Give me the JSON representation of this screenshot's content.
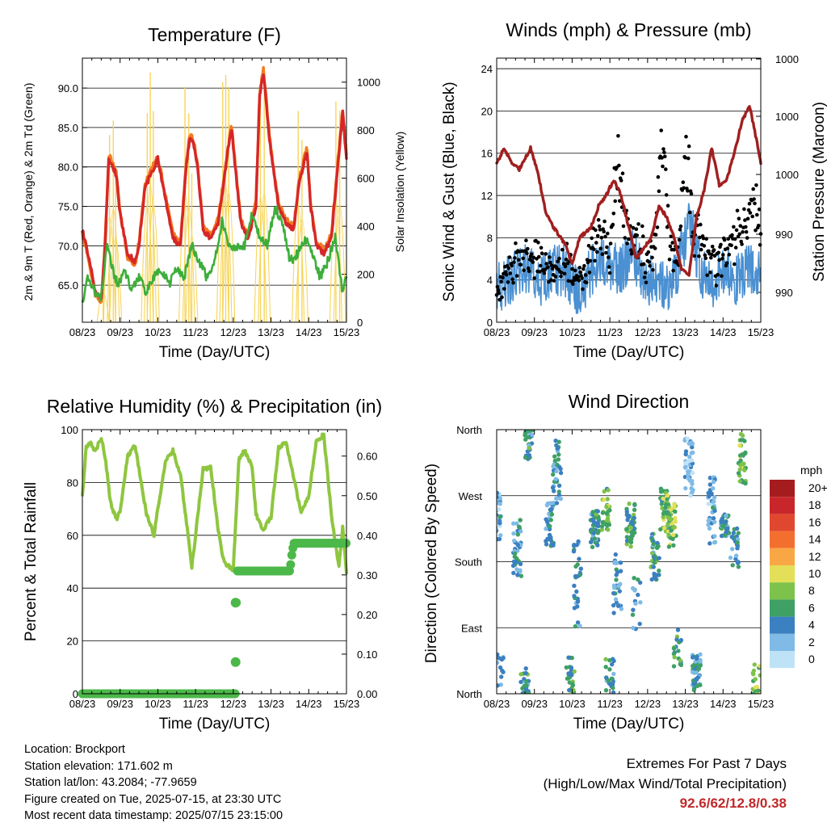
{
  "colors": {
    "temp_2m": "#d62728",
    "temp_9m": "#f47a20",
    "dewpoint": "#3dae3a",
    "solar": "#f7d55a",
    "wind_sustained": "#4a90d2",
    "gust": "#000000",
    "pressure": "#a01f1f",
    "rh": "#8ec63f",
    "precip": "#4cb84a",
    "extremes": "#c0282a"
  },
  "chart_data": [
    {
      "id": "temperature",
      "type": "line",
      "title": "Temperature (F)",
      "xlabel": "Time (Day/UTC)",
      "ylabel": "2m & 9m T (Red, Orange) & 2m Td (Green)",
      "y2label": "Solar Insolation (Yellow)",
      "x_ticks": [
        "08/23",
        "09/23",
        "10/23",
        "11/23",
        "12/23",
        "13/23",
        "14/23",
        "15/23"
      ],
      "ylim": [
        60.3,
        93.8
      ],
      "y_ticks": [
        "65.0",
        "70.0",
        "75.0",
        "80.0",
        "85.0",
        "90.0"
      ],
      "y_tick_values": [
        65,
        70,
        75,
        80,
        85,
        90
      ],
      "y2lim": [
        0,
        1100
      ],
      "y2_ticks": [
        0,
        200,
        400,
        600,
        800,
        1000
      ],
      "grid": true,
      "series": [
        {
          "name": "2m T",
          "color_key": "temp_2m",
          "axis": "left",
          "x": [
            0,
            0.15,
            0.35,
            0.5,
            0.6,
            0.7,
            0.8,
            0.9,
            1.0,
            1.2,
            1.4,
            1.5,
            1.65,
            1.8,
            2.0,
            2.2,
            2.4,
            2.6,
            2.75,
            2.85,
            2.95,
            3.05,
            3.2,
            3.4,
            3.6,
            3.75,
            3.85,
            3.95,
            4.05,
            4.2,
            4.4,
            4.6,
            4.7,
            4.8,
            4.95,
            5.05,
            5.2,
            5.4,
            5.6,
            5.75,
            5.85,
            5.95,
            6.05,
            6.2,
            6.4,
            6.6,
            6.75,
            6.9,
            7.0
          ],
          "y": [
            72,
            69,
            64,
            63,
            70,
            81,
            80,
            79,
            74,
            69,
            68,
            70,
            77,
            79,
            81,
            76,
            71,
            70,
            80,
            84,
            83,
            80,
            72,
            71,
            73,
            78,
            82,
            85,
            80,
            73,
            71,
            75,
            89,
            92,
            84,
            80,
            75,
            73,
            72,
            78,
            80,
            82,
            75,
            70,
            69,
            71,
            79,
            87,
            81
          ]
        },
        {
          "name": "9m T",
          "color_key": "temp_9m",
          "axis": "left",
          "x": [
            0,
            0.15,
            0.35,
            0.5,
            0.6,
            0.7,
            0.8,
            0.9,
            1.0,
            1.2,
            1.4,
            1.5,
            1.65,
            1.8,
            2.0,
            2.2,
            2.4,
            2.6,
            2.75,
            2.85,
            2.95,
            3.05,
            3.2,
            3.4,
            3.6,
            3.75,
            3.85,
            3.95,
            4.05,
            4.2,
            4.4,
            4.6,
            4.7,
            4.8,
            4.95,
            5.05,
            5.2,
            5.4,
            5.6,
            5.75,
            5.85,
            5.95,
            6.05,
            6.2,
            6.4,
            6.6,
            6.75,
            6.9,
            7.0
          ],
          "y": [
            71.5,
            68.5,
            63.6,
            62.8,
            70.5,
            81.5,
            80.5,
            79.3,
            74.5,
            68.3,
            67.5,
            70.5,
            77.5,
            79.5,
            81.3,
            76.5,
            71.5,
            70.3,
            80.5,
            84.3,
            83.3,
            80.5,
            72.5,
            71.3,
            73.5,
            78.5,
            82.3,
            85.3,
            80.5,
            73.3,
            71.3,
            75.5,
            89.5,
            92.5,
            84.5,
            80.5,
            75.5,
            73.3,
            72.5,
            78.5,
            80.5,
            82.5,
            75.5,
            70.5,
            69.5,
            71.5,
            79.5,
            87.3,
            81.5
          ]
        },
        {
          "name": "2m Td",
          "color_key": "dewpoint",
          "axis": "left",
          "x": [
            0,
            0.15,
            0.35,
            0.5,
            0.65,
            0.8,
            0.95,
            1.1,
            1.3,
            1.5,
            1.7,
            1.9,
            2.1,
            2.3,
            2.5,
            2.7,
            2.9,
            3.1,
            3.3,
            3.5,
            3.7,
            3.9,
            4.1,
            4.3,
            4.5,
            4.7,
            4.9,
            5.1,
            5.3,
            5.5,
            5.7,
            5.9,
            6.1,
            6.3,
            6.5,
            6.7,
            6.9,
            7.0
          ],
          "y": [
            63,
            66,
            64,
            63.5,
            70,
            67,
            65,
            67,
            64.5,
            66,
            64,
            66,
            67,
            65,
            67,
            66,
            70,
            68,
            66,
            68,
            73,
            70,
            70,
            70,
            74,
            71,
            70,
            75,
            73,
            68,
            69,
            71,
            69,
            66,
            68,
            71,
            64,
            66
          ]
        }
      ],
      "solar_peaks": [
        {
          "day": 0.55,
          "value": 140
        },
        {
          "day": 0.72,
          "value": 780
        },
        {
          "day": 0.82,
          "value": 840
        },
        {
          "day": 0.88,
          "value": 600
        },
        {
          "day": 1.72,
          "value": 870
        },
        {
          "day": 1.8,
          "value": 1040
        },
        {
          "day": 1.88,
          "value": 880
        },
        {
          "day": 2.72,
          "value": 980
        },
        {
          "day": 2.82,
          "value": 870
        },
        {
          "day": 2.9,
          "value": 620
        },
        {
          "day": 3.72,
          "value": 1000
        },
        {
          "day": 3.8,
          "value": 1030
        },
        {
          "day": 3.88,
          "value": 980
        },
        {
          "day": 4.72,
          "value": 940
        },
        {
          "day": 4.82,
          "value": 970
        },
        {
          "day": 5.72,
          "value": 880
        },
        {
          "day": 5.82,
          "value": 760
        },
        {
          "day": 6.72,
          "value": 920
        },
        {
          "day": 6.82,
          "value": 880
        }
      ]
    },
    {
      "id": "winds",
      "type": "line",
      "title": "Winds (mph) & Pressure (mb)",
      "xlabel": "Time (Day/UTC)",
      "ylabel": "Sonic Wind & Gust (Blue, Black)",
      "y2label": "Station Pressure (Maroon)",
      "x_ticks": [
        "08/23",
        "09/23",
        "10/23",
        "11/23",
        "12/23",
        "13/23",
        "14/23",
        "15/23"
      ],
      "ylim": [
        0,
        25
      ],
      "y_ticks": [
        0,
        4,
        8,
        12,
        16,
        20,
        24
      ],
      "y2_ticks": [
        "990",
        "990",
        "1000",
        "1000",
        "1000"
      ],
      "grid": true,
      "series": [
        {
          "name": "Sonic Wind",
          "color_key": "wind_sustained",
          "x": [
            0,
            0.3,
            0.6,
            0.9,
            1.2,
            1.5,
            1.8,
            2.1,
            2.4,
            2.7,
            3.0,
            3.3,
            3.6,
            3.9,
            4.2,
            4.5,
            4.8,
            5.1,
            5.4,
            5.7,
            6.0,
            6.3,
            6.6,
            6.9,
            7.0
          ],
          "y": [
            3,
            4,
            5,
            5,
            4,
            5,
            5,
            3,
            4,
            6,
            5,
            5,
            7,
            4,
            4,
            3,
            5,
            10,
            5,
            3,
            5,
            4,
            5,
            5,
            4
          ]
        },
        {
          "name": "Gust",
          "color_key": "gust",
          "x": [
            0,
            0.3,
            0.6,
            0.9,
            1.2,
            1.5,
            1.8,
            2.1,
            2.4,
            2.7,
            2.9,
            3.0,
            3.2,
            3.4,
            3.6,
            3.8,
            4.0,
            4.2,
            4.4,
            4.6,
            4.8,
            5.0,
            5.2,
            5.5,
            5.8,
            6.1,
            6.4,
            6.7,
            6.9,
            7.0
          ],
          "y": [
            5,
            7,
            8,
            9,
            8,
            7,
            9,
            6,
            7,
            12,
            11,
            9,
            21,
            12,
            11,
            10,
            8,
            10,
            22,
            9,
            8,
            23,
            12,
            9,
            8,
            10,
            11,
            13,
            15,
            10
          ]
        },
        {
          "name": "Station Pressure",
          "color_key": "pressure",
          "x": [
            0,
            0.2,
            0.4,
            0.6,
            0.9,
            1.1,
            1.3,
            1.5,
            1.8,
            2.0,
            2.2,
            2.5,
            2.7,
            2.9,
            3.1,
            3.3,
            3.5,
            3.7,
            3.9,
            4.1,
            4.3,
            4.5,
            4.7,
            4.9,
            5.1,
            5.3,
            5.5,
            5.7,
            5.9,
            6.1,
            6.3,
            6.5,
            6.7,
            6.9,
            7.0
          ],
          "y": [
            15,
            16.5,
            15,
            14.5,
            16.5,
            14,
            10.5,
            9,
            7.5,
            5.5,
            8,
            9,
            11,
            12,
            13.5,
            12,
            9,
            6,
            7,
            8,
            11,
            10,
            8,
            5,
            4.5,
            10,
            12.5,
            16.5,
            13,
            13.5,
            16,
            19,
            20.5,
            17,
            15
          ]
        }
      ]
    },
    {
      "id": "humidity",
      "type": "line",
      "title": "Relative Humidity (%) & Precipitation (in)",
      "xlabel": "Time (Day/UTC)",
      "ylabel": "Percent & Total Rainfall",
      "x_ticks": [
        "08/23",
        "09/23",
        "10/23",
        "11/23",
        "12/23",
        "13/23",
        "14/23",
        "15/23"
      ],
      "ylim": [
        0,
        100
      ],
      "y_ticks": [
        0,
        20,
        40,
        60,
        80,
        100
      ],
      "y2lim": [
        0,
        0.6667
      ],
      "y2_ticks": [
        "0.00",
        "0.10",
        "0.20",
        "0.30",
        "0.40",
        "0.50",
        "0.60"
      ],
      "grid": true,
      "series": [
        {
          "name": "Relative Humidity",
          "color_key": "rh",
          "x": [
            0,
            0.1,
            0.2,
            0.35,
            0.5,
            0.6,
            0.75,
            0.9,
            1.0,
            1.2,
            1.4,
            1.5,
            1.7,
            1.9,
            2.0,
            2.2,
            2.4,
            2.6,
            2.75,
            2.9,
            3.0,
            3.2,
            3.4,
            3.6,
            3.75,
            3.9,
            4.0,
            4.15,
            4.3,
            4.5,
            4.6,
            4.8,
            5.0,
            5.2,
            5.4,
            5.6,
            5.8,
            6.0,
            6.2,
            6.4,
            6.6,
            6.8,
            6.9,
            7.0
          ],
          "y": [
            75,
            93,
            95,
            92,
            97,
            90,
            72,
            66,
            69,
            90,
            94,
            85,
            68,
            60,
            70,
            88,
            92,
            83,
            66,
            48,
            60,
            85,
            86,
            62,
            50,
            48,
            47,
            89,
            92,
            86,
            68,
            62,
            67,
            93,
            95,
            82,
            68,
            75,
            96,
            98,
            68,
            48,
            63,
            46
          ]
        },
        {
          "name": "Total Precipitation",
          "color_key": "precip",
          "x": [
            0,
            0.5,
            1.0,
            1.5,
            2.0,
            2.5,
            3.0,
            3.5,
            4.0,
            4.05,
            4.07,
            4.08,
            4.09,
            4.1,
            4.5,
            5.0,
            5.5,
            5.55,
            5.6,
            6.0,
            6.5,
            7.0
          ],
          "y": [
            0,
            0,
            0,
            0,
            0,
            0,
            0,
            0,
            0,
            0,
            0.08,
            0.23,
            0.3,
            0.31,
            0.31,
            0.31,
            0.31,
            0.35,
            0.38,
            0.38,
            0.38,
            0.38
          ]
        }
      ]
    },
    {
      "id": "wind_direction",
      "type": "scatter",
      "title": "Wind Direction",
      "xlabel": "Time (Day/UTC)",
      "ylabel": "Direction (Colored By Speed)",
      "x_ticks": [
        "08/23",
        "09/23",
        "10/23",
        "11/23",
        "12/23",
        "13/23",
        "14/23",
        "15/23"
      ],
      "y_ticks": [
        "North",
        "East",
        "South",
        "West",
        "North"
      ],
      "y_tick_values": [
        0,
        90,
        180,
        270,
        360
      ],
      "ylim": [
        0,
        360
      ],
      "grid": true,
      "colorbar": {
        "title": "mph",
        "labels": [
          "20+",
          "18",
          "16",
          "14",
          "12",
          "10",
          "8",
          "6",
          "4",
          "2",
          "0"
        ],
        "colors": [
          "#a51c1f",
          "#c9262b",
          "#e0472f",
          "#f36f2e",
          "#f9a744",
          "#e3df59",
          "#7dc24a",
          "#3ea065",
          "#3b80c0",
          "#7fbbe6",
          "#bfe3f6"
        ]
      },
      "clusters": [
        {
          "day": 0.0,
          "dir": 240,
          "spread": 35,
          "n": 45,
          "speed": 3
        },
        {
          "day": 0.1,
          "dir": 30,
          "spread": 25,
          "n": 12,
          "speed": 3
        },
        {
          "day": 0.55,
          "dir": 200,
          "spread": 40,
          "n": 40,
          "speed": 4
        },
        {
          "day": 0.75,
          "dir": 20,
          "spread": 25,
          "n": 25,
          "speed": 5
        },
        {
          "day": 0.85,
          "dir": 340,
          "spread": 20,
          "n": 35,
          "speed": 5
        },
        {
          "day": 1.4,
          "dir": 230,
          "spread": 30,
          "n": 40,
          "speed": 4
        },
        {
          "day": 1.6,
          "dir": 300,
          "spread": 45,
          "n": 40,
          "speed": 4
        },
        {
          "day": 1.95,
          "dir": 25,
          "spread": 25,
          "n": 30,
          "speed": 6
        },
        {
          "day": 2.15,
          "dir": 150,
          "spread": 60,
          "n": 30,
          "speed": 4
        },
        {
          "day": 2.6,
          "dir": 225,
          "spread": 25,
          "n": 50,
          "speed": 5
        },
        {
          "day": 2.9,
          "dir": 250,
          "spread": 30,
          "n": 30,
          "speed": 7
        },
        {
          "day": 3.0,
          "dir": 25,
          "spread": 25,
          "n": 25,
          "speed": 5
        },
        {
          "day": 3.2,
          "dir": 150,
          "spread": 40,
          "n": 30,
          "speed": 4
        },
        {
          "day": 3.55,
          "dir": 230,
          "spread": 30,
          "n": 45,
          "speed": 6
        },
        {
          "day": 3.7,
          "dir": 120,
          "spread": 40,
          "n": 15,
          "speed": 4
        },
        {
          "day": 4.2,
          "dir": 190,
          "spread": 35,
          "n": 45,
          "speed": 5
        },
        {
          "day": 4.45,
          "dir": 250,
          "spread": 30,
          "n": 40,
          "speed": 7
        },
        {
          "day": 4.65,
          "dir": 230,
          "spread": 30,
          "n": 35,
          "speed": 8
        },
        {
          "day": 4.8,
          "dir": 60,
          "spread": 30,
          "n": 20,
          "speed": 6
        },
        {
          "day": 5.1,
          "dir": 310,
          "spread": 40,
          "n": 45,
          "speed": 2
        },
        {
          "day": 5.3,
          "dir": 30,
          "spread": 25,
          "n": 45,
          "speed": 4
        },
        {
          "day": 5.7,
          "dir": 250,
          "spread": 45,
          "n": 40,
          "speed": 3
        },
        {
          "day": 6.05,
          "dir": 230,
          "spread": 15,
          "n": 35,
          "speed": 5
        },
        {
          "day": 6.3,
          "dir": 200,
          "spread": 30,
          "n": 25,
          "speed": 4
        },
        {
          "day": 6.5,
          "dir": 320,
          "spread": 35,
          "n": 35,
          "speed": 7
        },
        {
          "day": 6.9,
          "dir": 20,
          "spread": 25,
          "n": 20,
          "speed": 8
        }
      ]
    }
  ],
  "info": {
    "location": "Location: Brockport",
    "elevation": "Station elevation: 171.602 m",
    "latlon": "Station lat/lon: 43.2084; -77.9659",
    "created": "Figure created on Tue, 2025-07-15, at 23:30 UTC",
    "timestamp": "Most recent data timestamp: 2025/07/15 23:15:00"
  },
  "extremes": {
    "heading": "Extremes For Past 7 Days",
    "subheading": "(High/Low/Max Wind/Total Precipitation)",
    "values": "92.6/62/12.8/0.38"
  }
}
